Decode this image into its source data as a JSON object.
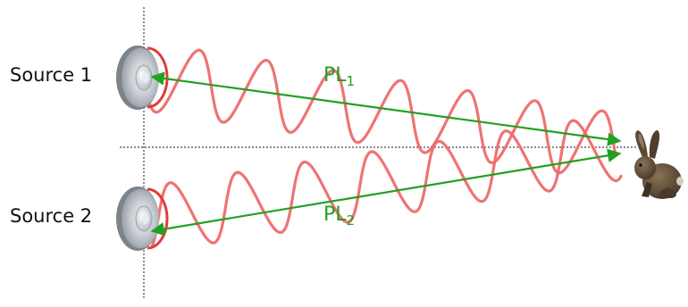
{
  "sources": [
    {
      "label": "Source 1"
    },
    {
      "label": "Source 2"
    }
  ],
  "paths": [
    {
      "base": "PL",
      "sub": "1"
    },
    {
      "base": "PL",
      "sub": "2"
    }
  ],
  "icons": {
    "speaker": "speaker-icon",
    "listener": "rabbit-icon"
  },
  "colors": {
    "wave": "#ee6b6b",
    "path": "#22a022",
    "axis": "#444444",
    "speaker_rim": "#e23b3b"
  }
}
